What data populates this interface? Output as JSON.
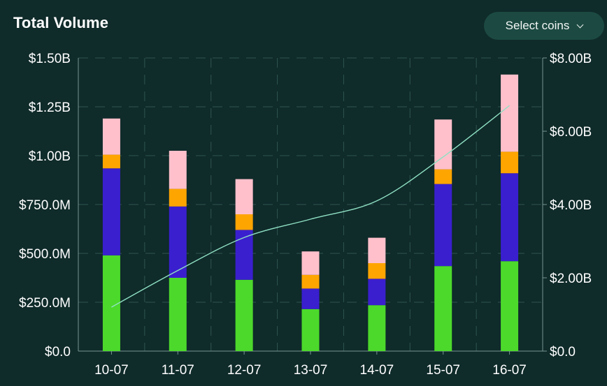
{
  "header": {
    "title": "Total Volume",
    "select_label": "Select coins"
  },
  "chart_data": {
    "type": "bar",
    "stacked": true,
    "title": "Total Volume",
    "categories": [
      "10-07",
      "11-07",
      "12-07",
      "13-07",
      "14-07",
      "15-07",
      "16-07"
    ],
    "series": [
      {
        "color": "#4cd92b",
        "values": [
          490000000,
          375000000,
          365000000,
          215000000,
          235000000,
          435000000,
          460000000
        ]
      },
      {
        "color": "#3a1fcf",
        "values": [
          445000000,
          365000000,
          255000000,
          105000000,
          135000000,
          420000000,
          450000000
        ]
      },
      {
        "color": "#ffa500",
        "values": [
          70000000,
          90000000,
          80000000,
          70000000,
          80000000,
          75000000,
          110000000
        ]
      },
      {
        "color": "#ffc0cb",
        "values": [
          185000000,
          195000000,
          180000000,
          120000000,
          130000000,
          255000000,
          395000000
        ]
      }
    ],
    "line_series": {
      "axis": "right",
      "color": "#8fe0c3",
      "values": [
        1200000000,
        2200000000,
        3100000000,
        3600000000,
        4100000000,
        5300000000,
        6700000000
      ]
    },
    "y_left": {
      "min": 0,
      "max": 1500000000,
      "ticks": [
        "$0.0",
        "$250.0M",
        "$500.0M",
        "$750.0M",
        "$1.00B",
        "$1.25B",
        "$1.50B"
      ]
    },
    "y_right": {
      "min": 0,
      "max": 8000000000,
      "ticks": [
        "$0.0",
        "$2.00B",
        "$4.00B",
        "$6.00B",
        "$8.00B"
      ]
    },
    "grid": true,
    "legend": "none"
  }
}
